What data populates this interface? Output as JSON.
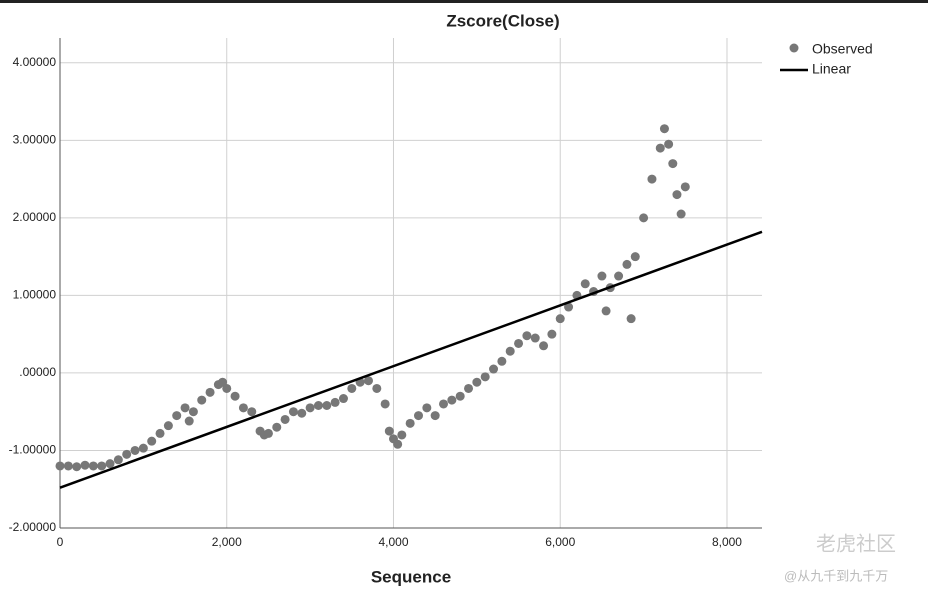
{
  "chart_data": {
    "type": "scatter",
    "title": "Zscore(Close)",
    "x_label": "Sequence",
    "xlim": [
      0,
      8420
    ],
    "ylim": [
      -2,
      4.32
    ],
    "xticks": [
      0,
      {
        "value": 2000,
        "label": "2,000"
      },
      {
        "value": 4000,
        "label": "4,000"
      },
      {
        "value": 6000,
        "label": "6,000"
      },
      {
        "value": 8000,
        "label": "8,000"
      }
    ],
    "yticks": [
      {
        "value": -2,
        "label": "-2.00000"
      },
      {
        "value": -1,
        "label": "-1.00000"
      },
      {
        "value": 0,
        "label": ".00000"
      },
      {
        "value": 1,
        "label": "1.00000"
      },
      {
        "value": 2,
        "label": "2.00000"
      },
      {
        "value": 3,
        "label": "3.00000"
      },
      {
        "value": 4,
        "label": "4.00000"
      }
    ],
    "grid": true,
    "legend": "right",
    "series": [
      {
        "name": "Observed",
        "type": "scatter",
        "color": "#777777",
        "x": [
          0,
          100,
          200,
          300,
          400,
          500,
          600,
          700,
          800,
          900,
          1000,
          1100,
          1200,
          1300,
          1400,
          1500,
          1550,
          1600,
          1700,
          1800,
          1900,
          1950,
          2000,
          2100,
          2200,
          2300,
          2400,
          2450,
          2500,
          2600,
          2700,
          2800,
          2900,
          3000,
          3100,
          3200,
          3300,
          3400,
          3500,
          3600,
          3700,
          3800,
          3900,
          3950,
          4000,
          4050,
          4100,
          4200,
          4300,
          4400,
          4500,
          4600,
          4700,
          4800,
          4900,
          5000,
          5100,
          5200,
          5300,
          5400,
          5500,
          5600,
          5700,
          5800,
          5900,
          6000,
          6100,
          6200,
          6300,
          6400,
          6500,
          6550,
          6600,
          6700,
          6800,
          6850,
          6900,
          7000,
          7100,
          7200,
          7250,
          7300,
          7350,
          7400,
          7450,
          7500
        ],
        "values": [
          -1.2,
          -1.2,
          -1.21,
          -1.19,
          -1.2,
          -1.2,
          -1.17,
          -1.12,
          -1.05,
          -1.0,
          -0.97,
          -0.88,
          -0.78,
          -0.68,
          -0.55,
          -0.45,
          -0.62,
          -0.5,
          -0.35,
          -0.25,
          -0.15,
          -0.12,
          -0.2,
          -0.3,
          -0.45,
          -0.5,
          -0.75,
          -0.8,
          -0.78,
          -0.7,
          -0.6,
          -0.5,
          -0.52,
          -0.45,
          -0.42,
          -0.42,
          -0.38,
          -0.33,
          -0.2,
          -0.12,
          -0.1,
          -0.2,
          -0.4,
          -0.75,
          -0.85,
          -0.92,
          -0.8,
          -0.65,
          -0.55,
          -0.45,
          -0.55,
          -0.4,
          -0.35,
          -0.3,
          -0.2,
          -0.12,
          -0.05,
          0.05,
          0.15,
          0.28,
          0.38,
          0.48,
          0.45,
          0.35,
          0.5,
          0.7,
          0.85,
          1.0,
          1.15,
          1.05,
          1.25,
          0.8,
          1.1,
          1.25,
          1.4,
          0.7,
          1.5,
          2.0,
          2.5,
          2.9,
          3.15,
          2.95,
          2.7,
          2.3,
          2.05,
          2.4
        ]
      },
      {
        "name": "Linear",
        "type": "line",
        "color": "#000000",
        "x": [
          0,
          8420
        ],
        "values": [
          -1.48,
          1.82
        ]
      }
    ],
    "watermark": {
      "brand": "老虎社区",
      "author": "@从九千到九千万"
    }
  }
}
